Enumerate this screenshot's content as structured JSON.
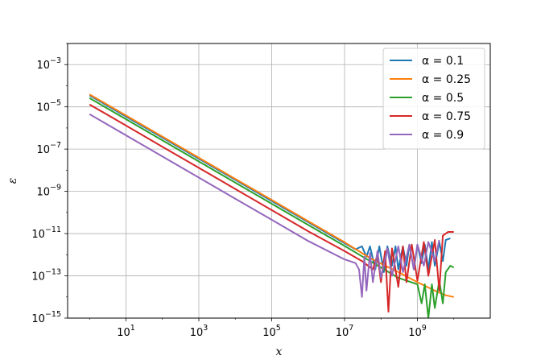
{
  "chart_data": {
    "type": "line",
    "title": "",
    "xlabel": "x",
    "ylabel": "ε",
    "xscale": "log",
    "yscale": "log",
    "xlim": [
      0.25,
      100000000000.0
    ],
    "ylim": [
      1e-15,
      0.01
    ],
    "grid": true,
    "legend_position": "upper right",
    "x_ticks": [
      {
        "value": 10,
        "mantissa": "10",
        "exp": "1"
      },
      {
        "value": 1000,
        "mantissa": "10",
        "exp": "3"
      },
      {
        "value": 100000,
        "mantissa": "10",
        "exp": "5"
      },
      {
        "value": 10000000,
        "mantissa": "10",
        "exp": "7"
      },
      {
        "value": 1000000000,
        "mantissa": "10",
        "exp": "9"
      }
    ],
    "y_ticks": [
      {
        "value": 1e-15,
        "mantissa": "10",
        "exp": "−15"
      },
      {
        "value": 1e-13,
        "mantissa": "10",
        "exp": "−13"
      },
      {
        "value": 1e-11,
        "mantissa": "10",
        "exp": "−11"
      },
      {
        "value": 1e-09,
        "mantissa": "10",
        "exp": "−9"
      },
      {
        "value": 1e-07,
        "mantissa": "10",
        "exp": "−7"
      },
      {
        "value": 1e-05,
        "mantissa": "10",
        "exp": "−5"
      },
      {
        "value": 0.001,
        "mantissa": "10",
        "exp": "−3"
      }
    ],
    "series": [
      {
        "name": "α = 0.1",
        "color": "#1f77b4",
        "points": [
          [
            1,
            3.5e-05
          ],
          [
            10,
            3.5e-06
          ],
          [
            100,
            3.5e-07
          ],
          [
            1000,
            3.5e-08
          ],
          [
            10000,
            3.5e-09
          ],
          [
            100000,
            3.5e-10
          ],
          [
            1000000,
            3.5e-11
          ],
          [
            10000000,
            3.5e-12
          ],
          [
            20000000,
            1.8e-12
          ],
          [
            30000000,
            2.5e-12
          ],
          [
            40000000,
            8e-13
          ],
          [
            50000000,
            2.5e-12
          ],
          [
            70000000,
            2e-13
          ],
          [
            90000000,
            2.5e-12
          ],
          [
            120000000,
            1.5e-13
          ],
          [
            150000000,
            2.5e-12
          ],
          [
            200000000,
            3e-13
          ],
          [
            250000000,
            2.5e-12
          ],
          [
            300000000,
            2e-13
          ],
          [
            400000000,
            2.5e-12
          ],
          [
            500000000,
            3e-13
          ],
          [
            600000000,
            3e-12
          ],
          [
            800000000,
            2e-13
          ],
          [
            1000000000,
            3e-12
          ],
          [
            1300000000,
            4e-13
          ],
          [
            1600000000,
            3e-12
          ],
          [
            2000000000,
            2e-13
          ],
          [
            2500000000,
            4e-12
          ],
          [
            3000000000,
            3e-13
          ],
          [
            4000000000,
            4e-12
          ],
          [
            5000000000,
            5e-13
          ],
          [
            6000000000,
            5e-12
          ],
          [
            8000000000,
            6e-12
          ]
        ]
      },
      {
        "name": "α = 0.25",
        "color": "#ff7f0e",
        "points": [
          [
            1,
            3.9e-05
          ],
          [
            10,
            3.9e-06
          ],
          [
            100,
            3.9e-07
          ],
          [
            1000,
            3.9e-08
          ],
          [
            10000,
            3.9e-09
          ],
          [
            100000,
            3.9e-10
          ],
          [
            1000000,
            3.9e-11
          ],
          [
            10000000,
            3.9e-12
          ],
          [
            50000000,
            7e-13
          ],
          [
            100000000,
            3.8e-13
          ],
          [
            300000000,
            1.5e-13
          ],
          [
            1000000000,
            5e-14
          ],
          [
            3000000000,
            2e-14
          ],
          [
            6000000000,
            1.2e-14
          ],
          [
            10000000000,
            1e-14
          ]
        ]
      },
      {
        "name": "α = 0.5",
        "color": "#2ca02c",
        "points": [
          [
            1,
            2.6e-05
          ],
          [
            10,
            2.6e-06
          ],
          [
            100,
            2.6e-07
          ],
          [
            1000,
            2.6e-08
          ],
          [
            10000,
            2.6e-09
          ],
          [
            100000,
            2.6e-10
          ],
          [
            1000000,
            2.6e-11
          ],
          [
            10000000,
            2.6e-12
          ],
          [
            50000000,
            5e-13
          ],
          [
            100000000,
            2.5e-13
          ],
          [
            300000000,
            8e-14
          ],
          [
            1000000000,
            4e-14
          ],
          [
            1300000000,
            5e-15
          ],
          [
            1600000000,
            4e-14
          ],
          [
            2000000000,
            1e-15
          ],
          [
            2500000000,
            4e-14
          ],
          [
            3000000000,
            3e-15
          ],
          [
            4000000000,
            6e-14
          ],
          [
            5000000000,
            5e-15
          ],
          [
            6000000000,
            1.5e-13
          ],
          [
            8000000000,
            3e-13
          ],
          [
            10000000000,
            2.5e-13
          ]
        ]
      },
      {
        "name": "α = 0.75",
        "color": "#d62728",
        "points": [
          [
            1,
            1.3e-05
          ],
          [
            10,
            1.3e-06
          ],
          [
            100,
            1.3e-07
          ],
          [
            1000,
            1.3e-08
          ],
          [
            10000,
            1.3e-09
          ],
          [
            100000,
            1.3e-10
          ],
          [
            1000000,
            1.3e-11
          ],
          [
            10000000,
            1.5e-12
          ],
          [
            30000000,
            5e-13
          ],
          [
            60000000,
            2e-13
          ],
          [
            80000000,
            1e-12
          ],
          [
            100000000,
            5e-14
          ],
          [
            130000000,
            1.5e-12
          ],
          [
            160000000,
            2e-15
          ],
          [
            200000000,
            2e-12
          ],
          [
            300000000,
            3e-14
          ],
          [
            400000000,
            2.5e-12
          ],
          [
            500000000,
            5e-14
          ],
          [
            700000000,
            3e-12
          ],
          [
            1000000000,
            6e-14
          ],
          [
            1500000000,
            4e-12
          ],
          [
            2000000000,
            1e-13
          ],
          [
            3000000000,
            5e-12
          ],
          [
            4000000000,
            2e-14
          ],
          [
            5000000000,
            8e-12
          ],
          [
            7000000000,
            1.2e-11
          ],
          [
            10000000000,
            1.2e-11
          ]
        ]
      },
      {
        "name": "α = 0.9",
        "color": "#9467bd",
        "points": [
          [
            1,
            4.5e-06
          ],
          [
            10,
            4.5e-07
          ],
          [
            100,
            4.5e-08
          ],
          [
            1000,
            4.5e-09
          ],
          [
            10000,
            4.5e-10
          ],
          [
            100000,
            4.5e-11
          ],
          [
            1000000,
            4.5e-12
          ],
          [
            10000000,
            6e-13
          ],
          [
            20000000,
            4e-13
          ],
          [
            25000000,
            2e-13
          ],
          [
            30000000,
            1e-14
          ],
          [
            35000000,
            8e-13
          ],
          [
            40000000,
            2e-14
          ],
          [
            50000000,
            1.2e-12
          ],
          [
            60000000,
            5e-14
          ],
          [
            80000000,
            1.5e-12
          ],
          [
            100000000,
            8e-14
          ],
          [
            150000000,
            2e-12
          ],
          [
            200000000,
            1e-13
          ],
          [
            300000000,
            2.5e-12
          ],
          [
            400000000,
            1.5e-13
          ],
          [
            600000000,
            3e-12
          ],
          [
            800000000,
            2e-13
          ],
          [
            1000000000,
            3e-12
          ],
          [
            1500000000,
            3e-13
          ],
          [
            2000000000,
            4e-12
          ],
          [
            3000000000,
            5e-13
          ],
          [
            4000000000,
            5e-12
          ]
        ]
      }
    ]
  }
}
